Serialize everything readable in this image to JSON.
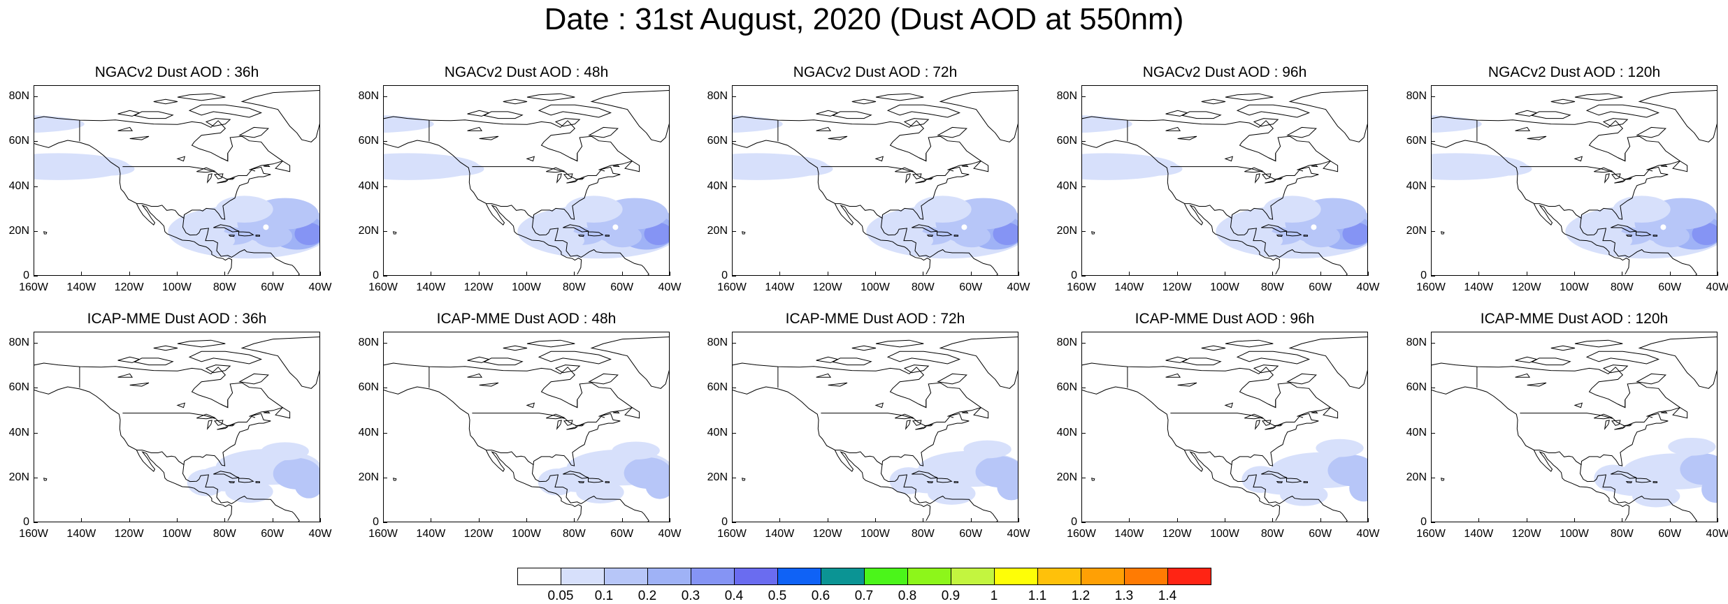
{
  "title": "Date : 31st August, 2020 (Dust AOD at 550nm)",
  "panels": [
    {
      "title": "NGACv2 Dust AOD : 36h",
      "model": "ngac",
      "lead": 36
    },
    {
      "title": "NGACv2 Dust AOD : 48h",
      "model": "ngac",
      "lead": 48
    },
    {
      "title": "NGACv2 Dust AOD : 72h",
      "model": "ngac",
      "lead": 72
    },
    {
      "title": "NGACv2 Dust AOD : 96h",
      "model": "ngac",
      "lead": 96
    },
    {
      "title": "NGACv2 Dust AOD : 120h",
      "model": "ngac",
      "lead": 120
    },
    {
      "title": "ICAP-MME Dust AOD : 36h",
      "model": "icap",
      "lead": 36
    },
    {
      "title": "ICAP-MME Dust AOD : 48h",
      "model": "icap",
      "lead": 48
    },
    {
      "title": "ICAP-MME Dust AOD : 72h",
      "model": "icap",
      "lead": 72
    },
    {
      "title": "ICAP-MME Dust AOD : 96h",
      "model": "icap",
      "lead": 96
    },
    {
      "title": "ICAP-MME Dust AOD : 120h",
      "model": "icap",
      "lead": 120
    }
  ],
  "axes": {
    "x_ticks": [
      "160W",
      "140W",
      "120W",
      "100W",
      "80W",
      "60W",
      "40W"
    ],
    "y_ticks": [
      "80N",
      "60N",
      "40N",
      "20N",
      "0"
    ]
  },
  "colorbar": {
    "labels": [
      "0.05",
      "0.1",
      "0.2",
      "0.3",
      "0.4",
      "0.5",
      "0.6",
      "0.7",
      "0.8",
      "0.9",
      "1",
      "1.1",
      "1.2",
      "1.3",
      "1.4"
    ],
    "colors": [
      "#ffffff",
      "#d7e0fb",
      "#b7c6f8",
      "#9fb2f6",
      "#8594f4",
      "#6a6cf0",
      "#0f62f6",
      "#0b9494",
      "#4bf51a",
      "#8df61a",
      "#c3f53f",
      "#fefe07",
      "#ffc10a",
      "#ffa005",
      "#ff7b03",
      "#ff2414"
    ]
  }
}
